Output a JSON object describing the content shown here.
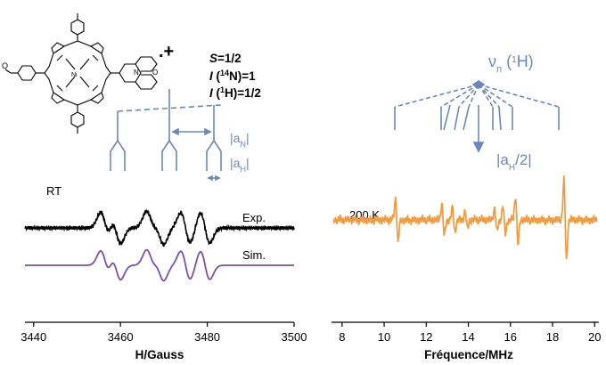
{
  "colors": {
    "experimental": "#000000",
    "simulated": "#7a4fae",
    "endor": "#f29a3d",
    "scheme": "#6c86c4"
  },
  "molecule": {
    "charge_label": ".+",
    "metal_label": "Ni",
    "spin_line": {
      "italic": "S",
      "rest": "=1/2"
    },
    "n_line": {
      "italic": "I",
      "open": " (",
      "sup": "14",
      "rest": "N)=1"
    },
    "h_line": {
      "italic": "I",
      "open": " (",
      "sup": "1",
      "rest": "H)=1/2"
    }
  },
  "scheme": {
    "nu_base": "ν",
    "nu_sub": "n",
    "nu_open": " (",
    "nu_sup": "1",
    "nu_close": "H)",
    "aN_base": "|a",
    "aN_sub": "N",
    "aN_close": "|",
    "aH_base": "|a",
    "aH_sub": "H",
    "aH_close": "|",
    "aH_half_base": "|a",
    "aH_half_sub": "H",
    "aH_half_close": "/2|"
  },
  "chart_data": [
    {
      "type": "line",
      "xlabel": "H/Gauss",
      "ylabel": "",
      "xlim": [
        3438,
        3500
      ],
      "xticks": [
        3440,
        3460,
        3480,
        3500
      ],
      "xtick_labels": [
        "3440",
        "3460",
        "3480",
        "3500"
      ],
      "temperature_label": "RT",
      "series": [
        {
          "name": "Exp.",
          "color": "#000000",
          "peaks": [
            3456.5,
            3459.0,
            3467.0,
            3469.0,
            3475.0,
            3479.5
          ],
          "linewidth_G": 1.1
        },
        {
          "name": "Sim.",
          "color": "#7a4fae",
          "peaks": [
            3456.5,
            3459.0,
            3467.0,
            3469.0,
            3475.0,
            3479.5
          ],
          "linewidth_G": 1.1
        }
      ]
    },
    {
      "type": "line",
      "xlabel": "Fréquence/MHz",
      "ylabel": "",
      "xlim": [
        7.5,
        20.2
      ],
      "xticks": [
        8,
        10,
        12,
        14,
        16,
        18,
        20
      ],
      "xtick_labels": [
        "8",
        "10",
        "12",
        "14",
        "16",
        "18",
        "20"
      ],
      "temperature_label": "200 K",
      "series": [
        {
          "name": "",
          "color": "#f29a3d",
          "lines": [
            {
              "mhz": 10.6,
              "amp": 0.55
            },
            {
              "mhz": 12.8,
              "amp": 0.42
            },
            {
              "mhz": 13.3,
              "amp": 0.3
            },
            {
              "mhz": 13.9,
              "amp": 0.22
            },
            {
              "mhz": 15.3,
              "amp": 0.3
            },
            {
              "mhz": 15.7,
              "amp": 0.35
            },
            {
              "mhz": 16.3,
              "amp": 0.62
            },
            {
              "mhz": 18.6,
              "amp": 1.0
            }
          ],
          "center_mhz": 14.5
        }
      ]
    }
  ]
}
